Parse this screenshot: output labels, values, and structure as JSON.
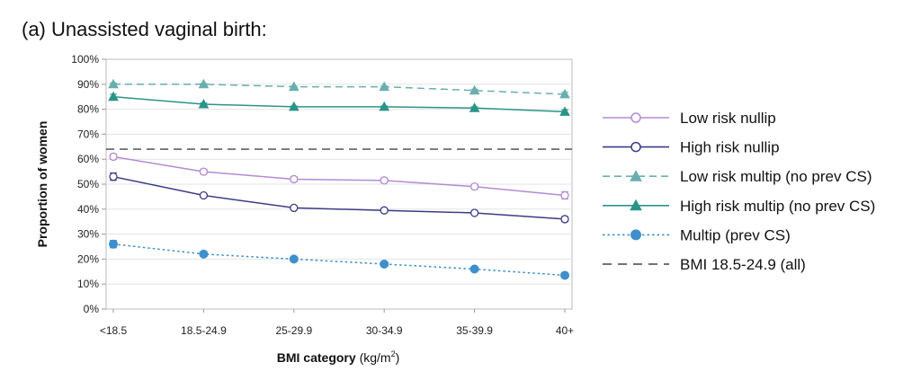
{
  "chart_data": {
    "type": "line",
    "title": "(a)  Unassisted vaginal birth:",
    "xlabel": "BMI category",
    "xlabel_unit": "(kg/m",
    "xlabel_unit_sup": "2",
    "xlabel_unit_close": ")",
    "ylabel": "Proportion of women",
    "categories": [
      "<18.5",
      "18.5-24.9",
      "25-29.9",
      "30-34.9",
      "35-39.9",
      "40+"
    ],
    "y_ticks": [
      "0%",
      "10%",
      "20%",
      "30%",
      "40%",
      "50%",
      "60%",
      "70%",
      "80%",
      "90%",
      "100%"
    ],
    "ylim": [
      0,
      100
    ],
    "grid": true,
    "legend_position": "right",
    "series": [
      {
        "name": "Low risk nullip",
        "values": [
          61,
          55,
          52,
          51.5,
          49,
          45.5
        ],
        "err": [
          1,
          1,
          1,
          1,
          1,
          1.5
        ],
        "color": "#b48ad4",
        "marker": "circle-open",
        "dash": false
      },
      {
        "name": "High risk nullip",
        "values": [
          53,
          45.5,
          40.5,
          39.5,
          38.5,
          36
        ],
        "err": [
          1.5,
          0.5,
          0.5,
          0.5,
          0.5,
          1
        ],
        "color": "#3c3c86",
        "marker": "circle-open",
        "dash": false
      },
      {
        "name": "Low risk multip (no prev CS)",
        "values": [
          90,
          90,
          89,
          89,
          87.5,
          86
        ],
        "err": [
          0.5,
          0.3,
          0.3,
          0.3,
          0.5,
          0.8
        ],
        "color": "#6aaeae",
        "marker": "triangle",
        "dash": true
      },
      {
        "name": "High risk multip (no prev CS)",
        "values": [
          85,
          82,
          81,
          81,
          80.5,
          79
        ],
        "err": [
          1,
          0.5,
          0.3,
          0.3,
          0.5,
          0.8
        ],
        "color": "#2a9488",
        "marker": "triangle",
        "dash": false
      },
      {
        "name": "Multip (prev CS)",
        "values": [
          26,
          22,
          20,
          18,
          16,
          13.5
        ],
        "err": [
          1.5,
          0.5,
          0.3,
          0.3,
          0.5,
          0.8
        ],
        "color": "#3f8fcc",
        "marker": "circle-filled",
        "dash": "dot"
      }
    ],
    "reference_lines": [
      {
        "name": "BMI 18.5-24.9 (all)",
        "value": 64,
        "color": "#444444"
      }
    ]
  }
}
